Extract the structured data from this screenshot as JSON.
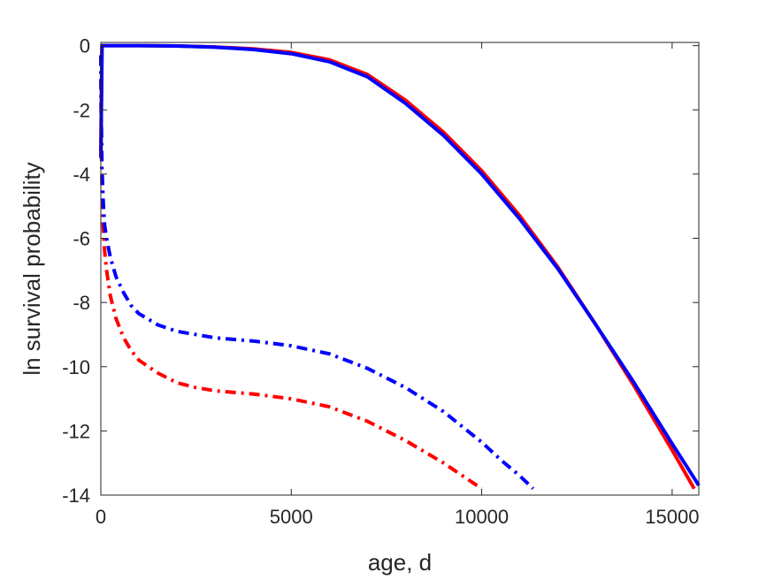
{
  "chart_data": {
    "type": "line",
    "title": "",
    "xlabel": "age, d",
    "ylabel": "ln survival probability",
    "xlim": [
      0,
      15700
    ],
    "ylim": [
      -14,
      0.1
    ],
    "xticks": [
      0,
      5000,
      10000,
      15000
    ],
    "yticks": [
      0,
      -2,
      -4,
      -6,
      -8,
      -10,
      -12,
      -14
    ],
    "xtick_labels": [
      "0",
      "5000",
      "10000",
      "15000"
    ],
    "ytick_labels": [
      "0",
      "-2",
      "-4",
      "-6",
      "-8",
      "-10",
      "-12",
      "-14"
    ],
    "grid": false,
    "legend": "none",
    "series": [
      {
        "color": "#ff0000",
        "style": "solid",
        "x": [
          0,
          30,
          1000,
          2000,
          3000,
          4000,
          5000,
          6000,
          7000,
          8000,
          9000,
          10000,
          11000,
          12000,
          13000,
          14000,
          15000,
          15580
        ],
        "y": [
          -3.5,
          0,
          0,
          -0.01,
          -0.04,
          -0.1,
          -0.21,
          -0.44,
          -0.9,
          -1.7,
          -2.7,
          -3.9,
          -5.3,
          -6.9,
          -8.7,
          -10.6,
          -12.6,
          -13.8
        ]
      },
      {
        "color": "#0000ff",
        "style": "solid",
        "x": [
          0,
          30,
          1000,
          2000,
          3000,
          4000,
          5000,
          6000,
          7000,
          8000,
          9000,
          10000,
          11000,
          12000,
          13000,
          14000,
          15000,
          15700
        ],
        "y": [
          -3.5,
          0,
          0,
          -0.01,
          -0.05,
          -0.12,
          -0.25,
          -0.5,
          -0.97,
          -1.8,
          -2.8,
          -4.0,
          -5.4,
          -6.95,
          -8.7,
          -10.5,
          -12.4,
          -13.7
        ]
      },
      {
        "color": "#ff0000",
        "style": "dashdot",
        "x": [
          0,
          10,
          30,
          60,
          100,
          150,
          250,
          400,
          600,
          800,
          1000,
          1500,
          2000,
          2500,
          3000,
          4000,
          5000,
          6000,
          7000,
          8000,
          9000,
          9500,
          10000
        ],
        "y": [
          -0.3,
          -2.5,
          -4.5,
          -5.6,
          -6.4,
          -7.0,
          -7.8,
          -8.5,
          -9.1,
          -9.5,
          -9.8,
          -10.2,
          -10.5,
          -10.65,
          -10.75,
          -10.85,
          -11.0,
          -11.25,
          -11.7,
          -12.3,
          -13.0,
          -13.4,
          -13.8
        ]
      },
      {
        "color": "#0000ff",
        "style": "dashdot",
        "x": [
          0,
          10,
          30,
          60,
          100,
          150,
          250,
          400,
          600,
          800,
          1000,
          1500,
          2000,
          2500,
          3000,
          4000,
          5000,
          6000,
          7000,
          8000,
          9000,
          10000,
          10500,
          11000,
          11350
        ],
        "y": [
          -0.3,
          -2.0,
          -3.8,
          -4.8,
          -5.6,
          -6.0,
          -6.6,
          -7.2,
          -7.7,
          -8.1,
          -8.35,
          -8.7,
          -8.9,
          -9.0,
          -9.1,
          -9.2,
          -9.35,
          -9.6,
          -10.05,
          -10.65,
          -11.4,
          -12.35,
          -12.9,
          -13.4,
          -13.8
        ]
      }
    ]
  }
}
